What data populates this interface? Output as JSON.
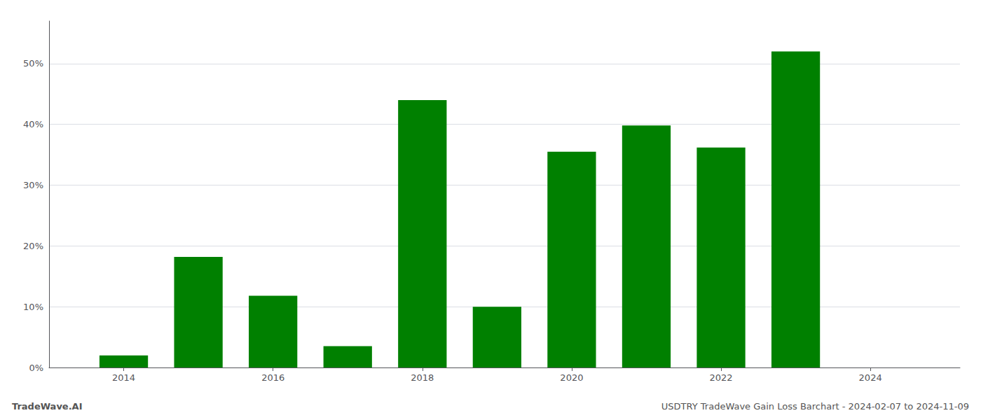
{
  "chart_data": {
    "type": "bar",
    "title": "USDTRY TradeWave Gain Loss Barchart - 2024-02-07 to 2024-11-09",
    "annotations": [
      "TradeWave.AI"
    ],
    "x": [
      2014,
      2015,
      2016,
      2017,
      2018,
      2019,
      2020,
      2021,
      2022,
      2023
    ],
    "values": [
      2.0,
      18.2,
      11.8,
      3.5,
      44.0,
      10.0,
      35.5,
      39.8,
      36.2,
      52.0
    ],
    "color": "#008000",
    "xlim": [
      2013.0,
      2025.2
    ],
    "xticks": [
      2014,
      2016,
      2018,
      2020,
      2022,
      2024
    ],
    "ylim": [
      0,
      57
    ],
    "yticks": [
      {
        "value": 0,
        "label": "0%"
      },
      {
        "value": 10,
        "label": "10%"
      },
      {
        "value": 20,
        "label": "20%"
      },
      {
        "value": 30,
        "label": "30%"
      },
      {
        "value": 40,
        "label": "40%"
      },
      {
        "value": 50,
        "label": "50%"
      }
    ],
    "grid": true
  }
}
